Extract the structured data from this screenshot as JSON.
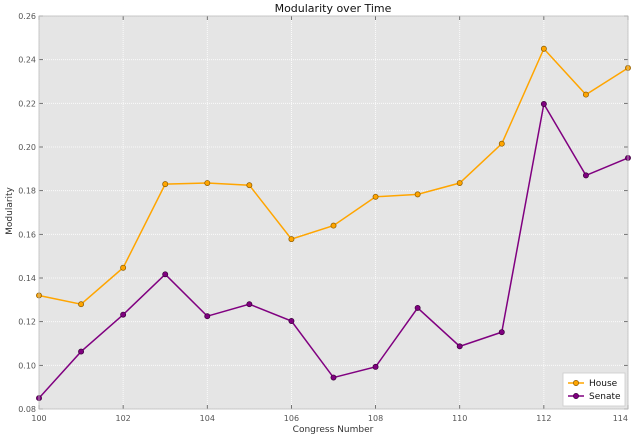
{
  "chart_data": {
    "type": "line",
    "title": "Modularity over Time",
    "xlabel": "Congress Number",
    "ylabel": "Modularity",
    "x": [
      100,
      101,
      102,
      103,
      104,
      105,
      106,
      107,
      108,
      109,
      110,
      111,
      112,
      113,
      114
    ],
    "xlim": [
      100,
      114
    ],
    "ylim": [
      0.08,
      0.26
    ],
    "x_ticks": [
      "100",
      "102",
      "104",
      "106",
      "108",
      "110",
      "112",
      "114"
    ],
    "y_ticks": [
      "0.08",
      "0.10",
      "0.12",
      "0.14",
      "0.16",
      "0.18",
      "0.20",
      "0.22",
      "0.24",
      "0.26"
    ],
    "grid": true,
    "legend_position": "bottom-right",
    "background": "#e5e5e5",
    "series": [
      {
        "name": "House",
        "color": "#ffa500",
        "marker_edge": "#8a5a00",
        "values": [
          0.132,
          0.128,
          0.1447,
          0.183,
          0.1835,
          0.1825,
          0.1578,
          0.164,
          0.1772,
          0.1783,
          0.1835,
          0.2015,
          0.245,
          0.224,
          0.2362
        ]
      },
      {
        "name": "Senate",
        "color": "#800080",
        "marker_edge": "#3a003a",
        "values": [
          0.085,
          0.1063,
          0.1232,
          0.1417,
          0.1225,
          0.128,
          0.1203,
          0.0944,
          0.0993,
          0.1263,
          0.1087,
          0.1152,
          0.2197,
          0.187,
          0.195
        ]
      }
    ]
  }
}
